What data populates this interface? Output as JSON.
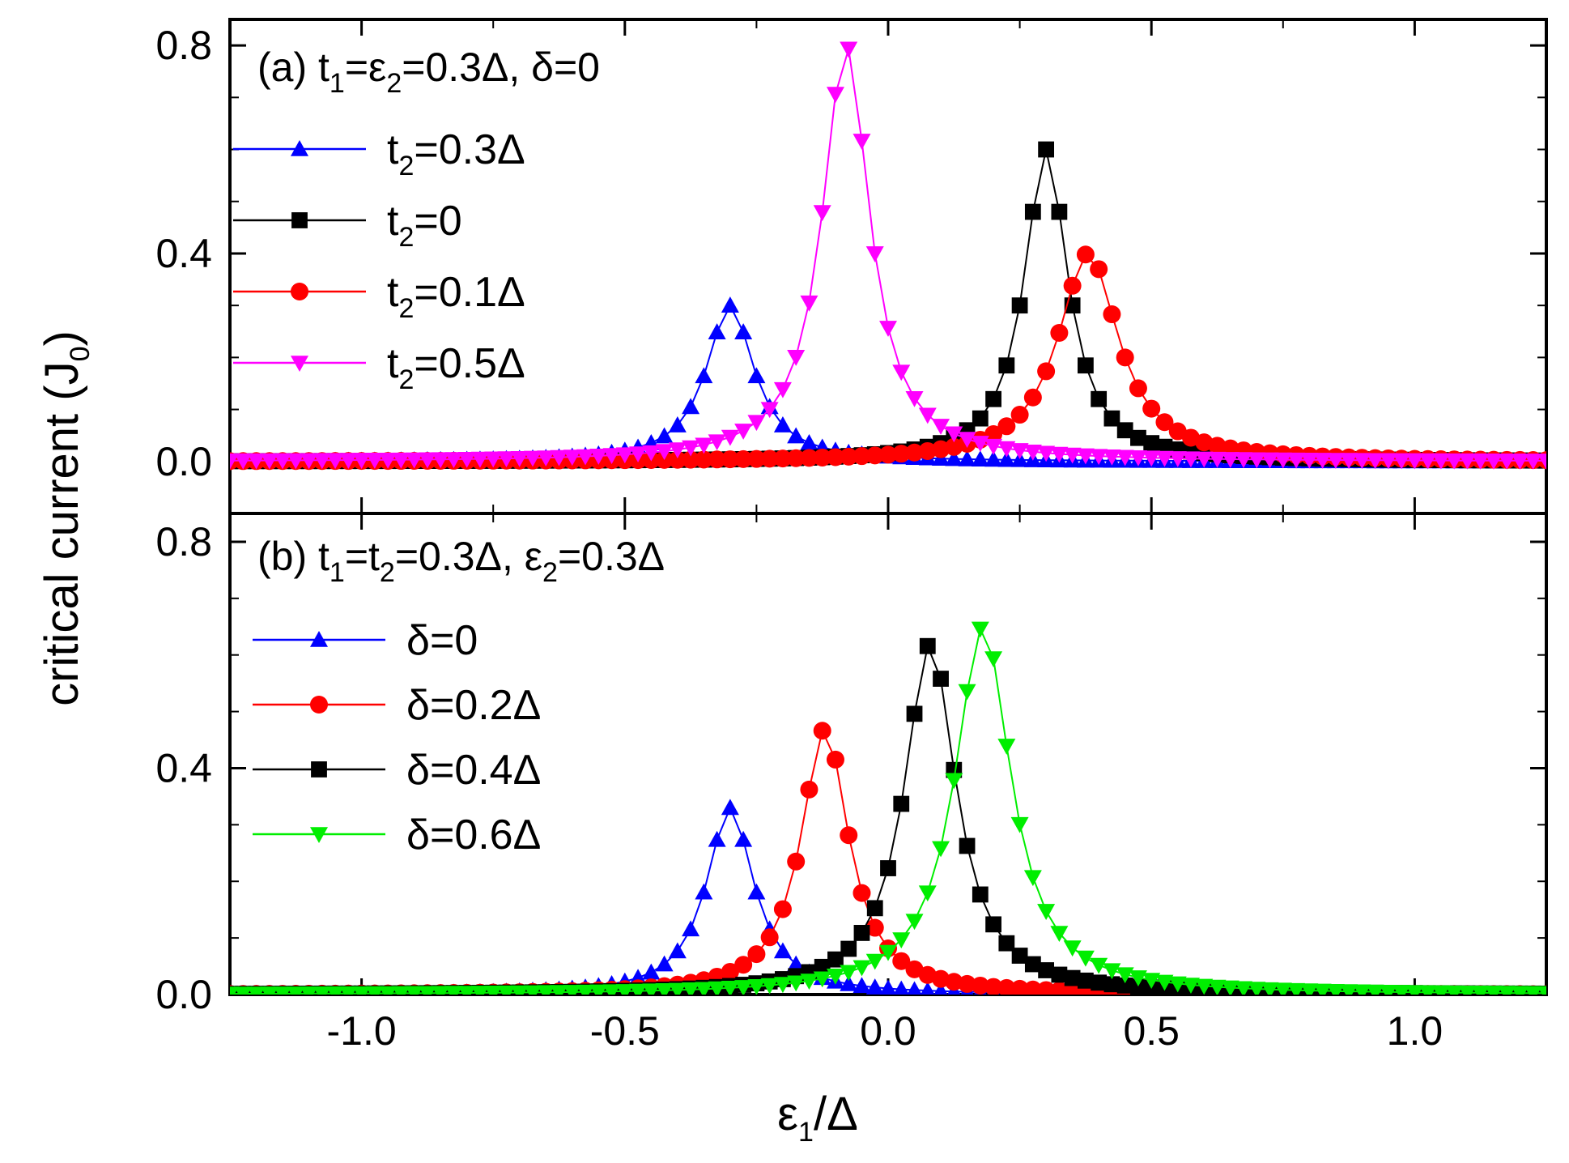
{
  "chart_data": {
    "type": "line",
    "xlabel": "ε1/Δ",
    "ylabel": "critical current (J0)",
    "xlim": [
      -1.25,
      1.25
    ],
    "xticks": [
      "-1.0",
      "-0.5",
      "0.0",
      "0.5",
      "1.0"
    ],
    "xtick_values": [
      -1.0,
      -0.5,
      0.0,
      0.5,
      1.0
    ],
    "grid": false,
    "panels": [
      {
        "id": "a",
        "label": "(a)",
        "title_parts": [
          "(a) t",
          "1",
          "=ε",
          "2",
          "=0.3Δ, δ=0"
        ],
        "ylim": [
          -0.1,
          0.85
        ],
        "yticks": [
          "0.0",
          "0.4",
          "0.8"
        ],
        "ytick_values": [
          0.0,
          0.4,
          0.8
        ],
        "legend_location": "upper-left",
        "series": [
          {
            "name": "t2=0.3Δ",
            "label_parts": [
              "t",
              "2",
              "=0.3Δ"
            ],
            "color": "#0000ff",
            "marker": "triangle-up",
            "peak": 0.3,
            "width": 0.055,
            "center": -0.3,
            "floor": 0.0
          },
          {
            "name": "t2=0",
            "label_parts": [
              "t",
              "2",
              "=0"
            ],
            "color": "#000000",
            "marker": "square",
            "peak": 0.6,
            "width": 0.05,
            "center": 0.3,
            "floor": 0.0
          },
          {
            "name": "t2=0.1Δ",
            "label_parts": [
              "t",
              "2",
              "=0.1Δ"
            ],
            "color": "#ff0000",
            "marker": "circle",
            "peak": 0.4,
            "width": 0.07,
            "center": 0.38,
            "floor": 0.0
          },
          {
            "name": "t2=0.5Δ",
            "label_parts": [
              "t",
              "2",
              "=0.5Δ"
            ],
            "color": "#ff00ff",
            "marker": "triangle-down",
            "peak": 0.8,
            "width": 0.055,
            "center": -0.08,
            "floor": 0.0
          }
        ]
      },
      {
        "id": "b",
        "label": "(b)",
        "title_parts": [
          "(b) t",
          "1",
          "=t",
          "2",
          "=0.3Δ, ε",
          "2",
          "=0.3Δ"
        ],
        "ylim": [
          0.0,
          0.85
        ],
        "yticks": [
          "0.0",
          "0.4",
          "0.8"
        ],
        "ytick_values": [
          0.0,
          0.4,
          0.8
        ],
        "legend_location": "upper-left",
        "series": [
          {
            "name": "δ=0",
            "label_parts": [
              "δ=0"
            ],
            "color": "#0000ff",
            "marker": "triangle-up",
            "peak": 0.33,
            "width": 0.055,
            "center": -0.3,
            "floor": 0.0
          },
          {
            "name": "δ=0.2Δ",
            "label_parts": [
              "δ=0.2Δ"
            ],
            "color": "#ff0000",
            "marker": "circle",
            "peak": 0.47,
            "width": 0.055,
            "center": -0.12,
            "floor": 0.0
          },
          {
            "name": "δ=0.4Δ",
            "label_parts": [
              "δ=0.4Δ"
            ],
            "color": "#000000",
            "marker": "square",
            "peak": 0.62,
            "width": 0.06,
            "center": 0.08,
            "floor": 0.0
          },
          {
            "name": "δ=0.6Δ",
            "label_parts": [
              "δ=0.6Δ"
            ],
            "color": "#00ee00",
            "marker": "triangle-down",
            "peak": 0.65,
            "width": 0.065,
            "center": 0.18,
            "floor": 0.0
          }
        ]
      }
    ]
  }
}
